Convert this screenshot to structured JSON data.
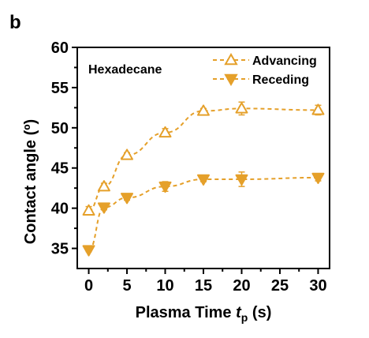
{
  "panel_label": "b",
  "chart_data": {
    "type": "line",
    "xlabel": "Plasma Time",
    "xlabel_var": "t",
    "xlabel_sub": "p",
    "xlabel_unit": "(s)",
    "ylabel": "Contact angle (º)",
    "annotation": "Hexadecane",
    "xlim": [
      -1.5,
      31.5
    ],
    "ylim": [
      32.5,
      60
    ],
    "xticks": [
      0,
      5,
      10,
      15,
      20,
      25,
      30
    ],
    "yticks": [
      35,
      40,
      45,
      50,
      55,
      60
    ],
    "legend_position": "top-right",
    "grid": false,
    "color": "#E5A02A",
    "series": [
      {
        "name": "Advancing",
        "marker": "triangle-up-open",
        "x": [
          0,
          2,
          5,
          10,
          15,
          20,
          30
        ],
        "y": [
          39.7,
          42.7,
          46.6,
          49.4,
          52.1,
          52.4,
          52.2
        ],
        "err": [
          0.5,
          0.4,
          0.3,
          0.5,
          0.3,
          0.8,
          0.6
        ]
      },
      {
        "name": "Receding",
        "marker": "triangle-down-filled",
        "x": [
          0,
          2,
          5,
          10,
          15,
          20,
          30
        ],
        "y": [
          34.8,
          40.1,
          41.3,
          42.7,
          43.6,
          43.6,
          43.8
        ],
        "err": [
          0.2,
          0.3,
          0.3,
          0.6,
          0.3,
          0.9,
          0.4
        ]
      }
    ]
  }
}
